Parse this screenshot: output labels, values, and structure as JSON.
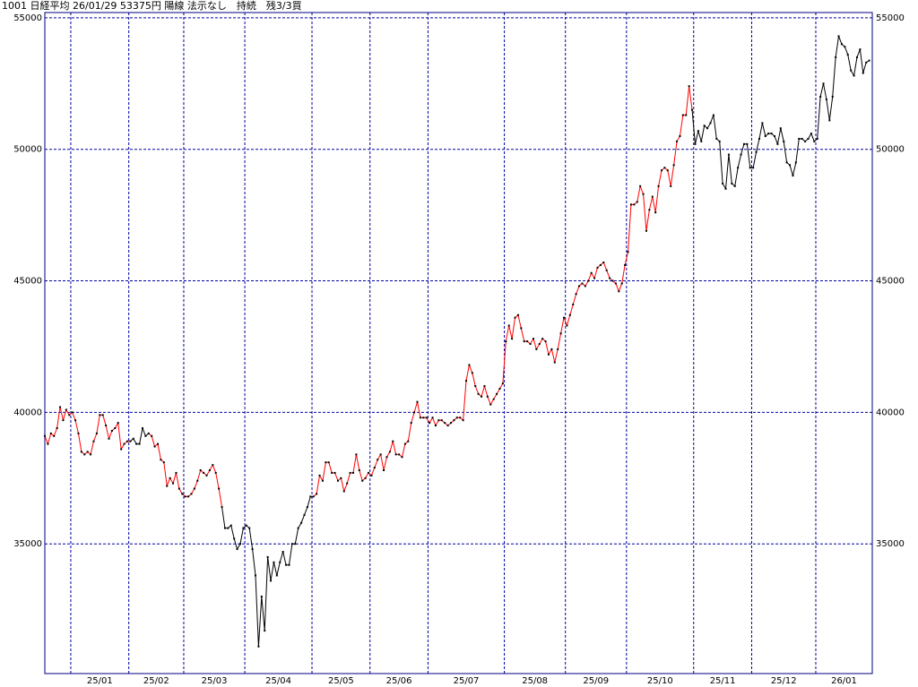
{
  "chart_data": {
    "type": "line",
    "title": "1001 日経平均 26/01/29 53375円 陽線 法示なし　持続　残3/3買",
    "xlim": [
      0,
      271
    ],
    "ylim": [
      30070,
      55200
    ],
    "yticks": [
      35000,
      40000,
      45000,
      50000,
      55000
    ],
    "xticks": [
      {
        "value": 8.5,
        "label": "25/01"
      },
      {
        "value": 27.5,
        "label": "25/02"
      },
      {
        "value": 45.5,
        "label": "25/03"
      },
      {
        "value": 65.5,
        "label": "25/04"
      },
      {
        "value": 87.5,
        "label": "25/05"
      },
      {
        "value": 106.5,
        "label": "25/06"
      },
      {
        "value": 125.5,
        "label": "25/07"
      },
      {
        "value": 150.5,
        "label": "25/08"
      },
      {
        "value": 170.5,
        "label": "25/09"
      },
      {
        "value": 190.5,
        "label": "25/10"
      },
      {
        "value": 212.5,
        "label": "25/11"
      },
      {
        "value": 231.5,
        "label": "25/12"
      },
      {
        "value": 252.5,
        "label": "26/01"
      }
    ],
    "grid": true,
    "grid_color": "#0000a0",
    "axis_color": "#000080",
    "marker_color": "#000000",
    "values": [
      39100,
      38800,
      39200,
      39100,
      39400,
      40200,
      39700,
      40100,
      39900,
      40000,
      39700,
      39200,
      38500,
      38400,
      38500,
      38400,
      38900,
      39200,
      39900,
      39900,
      39500,
      39000,
      39300,
      39400,
      39600,
      38600,
      38800,
      38900,
      38900,
      39000,
      38800,
      38800,
      39400,
      39100,
      39200,
      39100,
      38700,
      38800,
      38200,
      38100,
      37200,
      37500,
      37300,
      37700,
      37100,
      36900,
      36800,
      36800,
      36900,
      37100,
      37400,
      37800,
      37700,
      37600,
      37800,
      38000,
      37700,
      37100,
      36400,
      35600,
      35600,
      35700,
      35200,
      34800,
      35000,
      35600,
      35700,
      35600,
      34800,
      33800,
      31100,
      33000,
      31700,
      34500,
      33600,
      34300,
      33800,
      34300,
      34700,
      34200,
      34200,
      35000,
      35000,
      35600,
      35800,
      36100,
      36400,
      36800,
      36800,
      36900,
      37600,
      37400,
      38100,
      38100,
      37700,
      37700,
      37400,
      37500,
      37000,
      37300,
      37700,
      37700,
      38400,
      37800,
      37400,
      37500,
      37700,
      37600,
      37900,
      38200,
      38400,
      37800,
      38300,
      38500,
      38900,
      38400,
      38400,
      38300,
      38800,
      38900,
      39600,
      40000,
      40400,
      39800,
      39800,
      39800,
      39600,
      39800,
      39500,
      39700,
      39700,
      39600,
      39500,
      39600,
      39700,
      39800,
      39800,
      39700,
      41200,
      41800,
      41500,
      41000,
      40700,
      40600,
      41000,
      40600,
      40300,
      40500,
      40700,
      40900,
      41100,
      42700,
      43300,
      42800,
      43600,
      43700,
      43200,
      42700,
      42700,
      42600,
      42800,
      42400,
      42600,
      42800,
      42700,
      42200,
      42400,
      41900,
      42400,
      43000,
      43600,
      43300,
      43700,
      44100,
      44500,
      44800,
      44900,
      44800,
      45000,
      45300,
      45100,
      45500,
      45600,
      45700,
      45400,
      45100,
      45000,
      44900,
      44600,
      44900,
      45600,
      46100,
      47900,
      47900,
      48000,
      48600,
      48300,
      46900,
      47700,
      48200,
      47600,
      48600,
      49200,
      49300,
      49200,
      48600,
      49400,
      50300,
      50500,
      51300,
      51300,
      52400,
      51500,
      50200,
      50700,
      50300,
      50900,
      50800,
      51000,
      51300,
      50400,
      50300,
      48700,
      48500,
      49800,
      48700,
      48600,
      49300,
      49800,
      50200,
      50200,
      49300,
      49300,
      49900,
      50400,
      51000,
      50500,
      50600,
      50600,
      50500,
      50200,
      50800,
      50300,
      49500,
      49400,
      49000,
      49500,
      50400,
      50400,
      50300,
      50400,
      50600,
      50300,
      50400,
      52000,
      52500,
      51900,
      51100,
      52000,
      53500,
      54300,
      54000,
      53900,
      53600,
      53000,
      52800,
      53500,
      53800,
      52900,
      53300,
      53375
    ],
    "segment_colors": [
      "red",
      "red",
      "red",
      "red",
      "red",
      "red",
      "red",
      "red",
      "red",
      "red",
      "red",
      "red",
      "red",
      "red",
      "red",
      "red",
      "red",
      "red",
      "red",
      "red",
      "red",
      "red",
      "red",
      "red",
      "red",
      "red",
      "red",
      "red",
      "black",
      "black",
      "black",
      "black",
      "black",
      "black",
      "red",
      "red",
      "red",
      "red",
      "red",
      "red",
      "red",
      "red",
      "red",
      "red",
      "red",
      "red",
      "red",
      "red",
      "red",
      "red",
      "red",
      "red",
      "red",
      "red",
      "red",
      "red",
      "red",
      "red",
      "black",
      "black",
      "black",
      "black",
      "black",
      "black",
      "black",
      "black",
      "black",
      "black",
      "black",
      "black",
      "black",
      "black",
      "black",
      "black",
      "black",
      "black",
      "black",
      "black",
      "black",
      "black",
      "black",
      "black",
      "black",
      "black",
      "black",
      "black",
      "black",
      "black",
      "red",
      "red",
      "red",
      "red",
      "red",
      "red",
      "red",
      "red",
      "red",
      "red",
      "red",
      "red",
      "red",
      "red",
      "red",
      "red",
      "red",
      "red",
      "red",
      "red",
      "red",
      "red",
      "red",
      "red",
      "red",
      "red",
      "red",
      "red",
      "red",
      "red",
      "red",
      "red",
      "red",
      "red",
      "red",
      "red",
      "red",
      "red",
      "red",
      "red",
      "red",
      "red",
      "red",
      "red",
      "red",
      "red",
      "red",
      "red",
      "red",
      "red",
      "red",
      "red",
      "red",
      "red",
      "red",
      "red",
      "red",
      "red",
      "red",
      "red",
      "red",
      "red",
      "red",
      "red",
      "red",
      "red",
      "red",
      "red",
      "red",
      "red",
      "red",
      "red",
      "red",
      "red",
      "red",
      "red",
      "red",
      "red",
      "red",
      "red",
      "red",
      "red",
      "red",
      "red",
      "red",
      "red",
      "red",
      "red",
      "red",
      "red",
      "red",
      "red",
      "red",
      "red",
      "red",
      "red",
      "red",
      "red",
      "red",
      "red",
      "red",
      "red",
      "red",
      "red",
      "red",
      "red",
      "red",
      "red",
      "red",
      "red",
      "red",
      "red",
      "red",
      "red",
      "red",
      "red",
      "red",
      "red",
      "red",
      "red",
      "red",
      "red",
      "red",
      "red",
      "black",
      "black",
      "black",
      "black",
      "black",
      "black",
      "black",
      "black",
      "black",
      "black",
      "black",
      "black",
      "black",
      "black",
      "black",
      "black",
      "black",
      "black",
      "black",
      "black",
      "black",
      "black",
      "black",
      "black",
      "black",
      "black",
      "black",
      "black",
      "black",
      "black",
      "black",
      "black",
      "black",
      "black",
      "black",
      "black",
      "black",
      "black",
      "black",
      "black",
      "black",
      "black",
      "black",
      "black",
      "black",
      "black",
      "black",
      "black",
      "black",
      "black",
      "black",
      "black",
      "black",
      "black",
      "black",
      "black",
      "black",
      "black"
    ]
  }
}
